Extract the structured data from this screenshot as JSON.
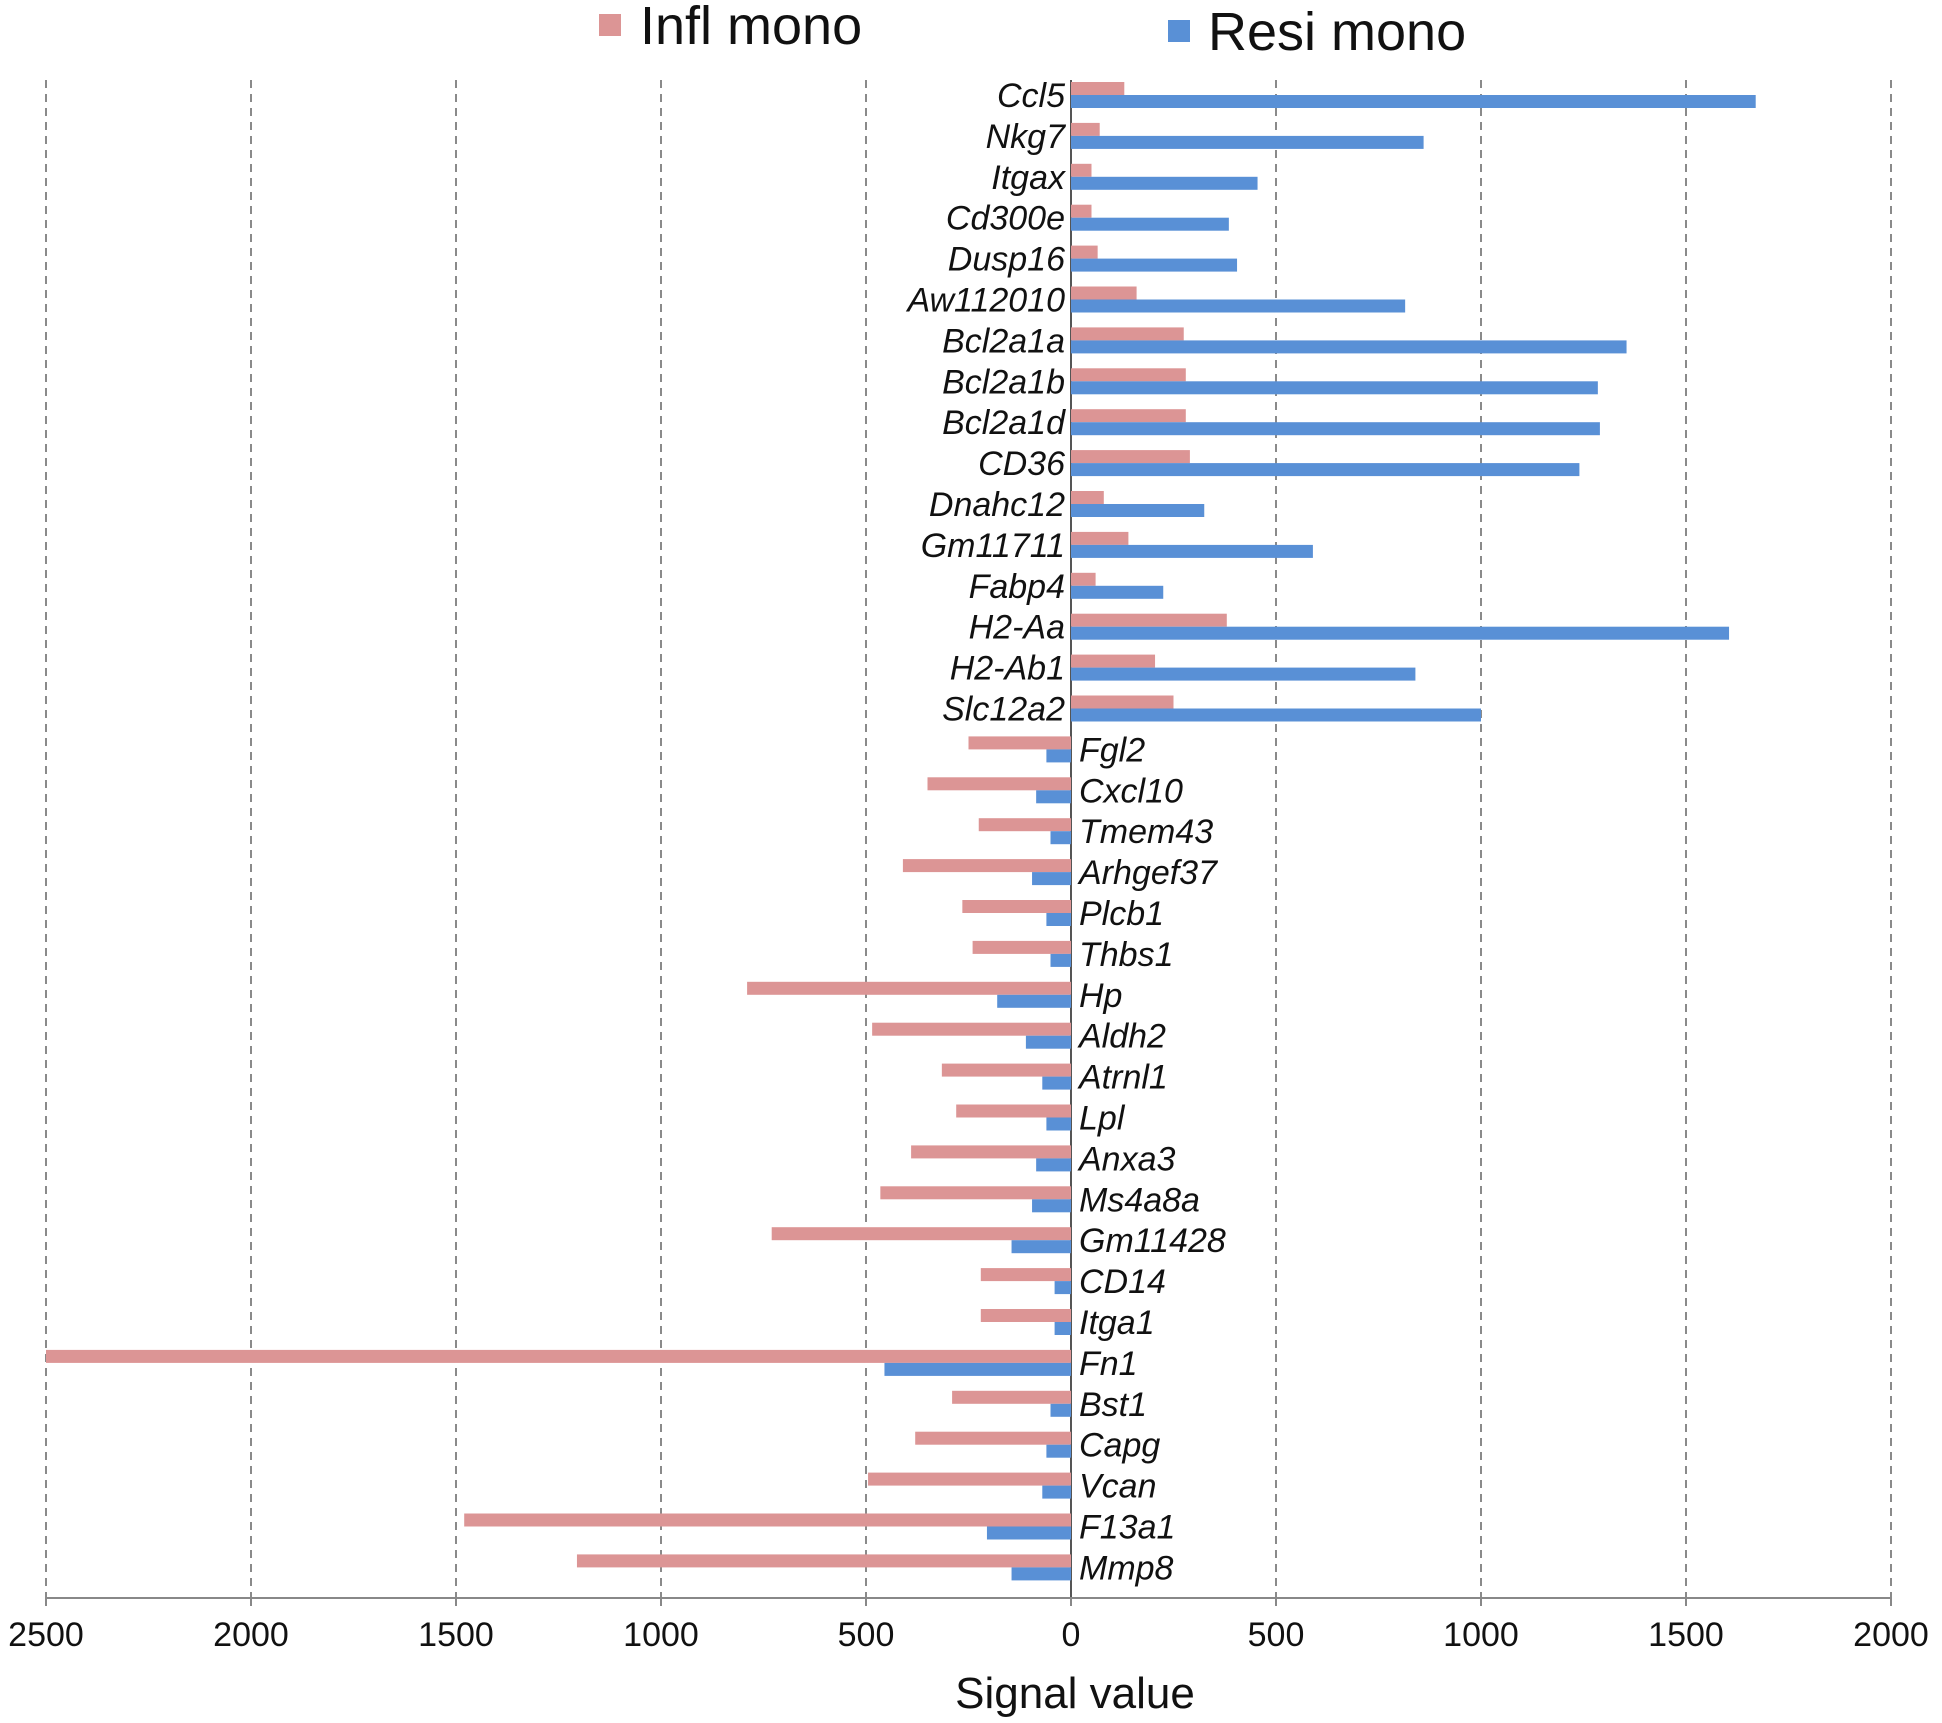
{
  "chart_data": {
    "type": "bar",
    "orientation": "horizontal",
    "xlabel": "Signal value",
    "xlim": [
      -2500,
      2000
    ],
    "x_ticks": [
      -2500,
      -2000,
      -1500,
      -1000,
      -500,
      0,
      500,
      1000,
      1500,
      2000
    ],
    "x_tick_labels": [
      "2500",
      "2000",
      "1500",
      "1000",
      "500",
      "0",
      "500",
      "1000",
      "1500",
      "2000"
    ],
    "grid": "vertical dashed",
    "legend_position": "top",
    "categories": [
      "Ccl5",
      "Nkg7",
      "Itgax",
      "Cd300e",
      "Dusp16",
      "Aw112010",
      "Bcl2a1a",
      "Bcl2a1b",
      "Bcl2a1d",
      "CD36",
      "Dnahc12",
      "Gm11711",
      "Fabp4",
      "H2-Aa",
      "H2-Ab1",
      "Slc12a2",
      "Fgl2",
      "Cxcl10",
      "Tmem43",
      "Arhgef37",
      "Plcb1",
      "Thbs1",
      "Hp",
      "Aldh2",
      "Atrnl1",
      "Lpl",
      "Anxa3",
      "Ms4a8a",
      "Gm11428",
      "CD14",
      "Itga1",
      "Fn1",
      "Bst1",
      "Capg",
      "Vcan",
      "F13a1",
      "Mmp8"
    ],
    "series": [
      {
        "name": "Infl mono",
        "color": "#dc9595",
        "values": [
          130,
          70,
          50,
          50,
          65,
          160,
          275,
          280,
          280,
          290,
          80,
          140,
          60,
          380,
          205,
          250,
          -250,
          -350,
          -225,
          -410,
          -265,
          -240,
          -790,
          -485,
          -315,
          -280,
          -390,
          -465,
          -730,
          -220,
          -220,
          -2500,
          -290,
          -380,
          -495,
          -1480,
          -1205
        ]
      },
      {
        "name": "Resi mono",
        "color": "#5990d6",
        "values": [
          1670,
          860,
          455,
          385,
          405,
          815,
          1355,
          1285,
          1290,
          1240,
          325,
          590,
          225,
          1605,
          840,
          1000,
          -60,
          -85,
          -50,
          -95,
          -60,
          -50,
          -180,
          -110,
          -70,
          -60,
          -85,
          -95,
          -145,
          -40,
          -40,
          -455,
          -50,
          -60,
          -70,
          -205,
          -145
        ]
      }
    ]
  }
}
